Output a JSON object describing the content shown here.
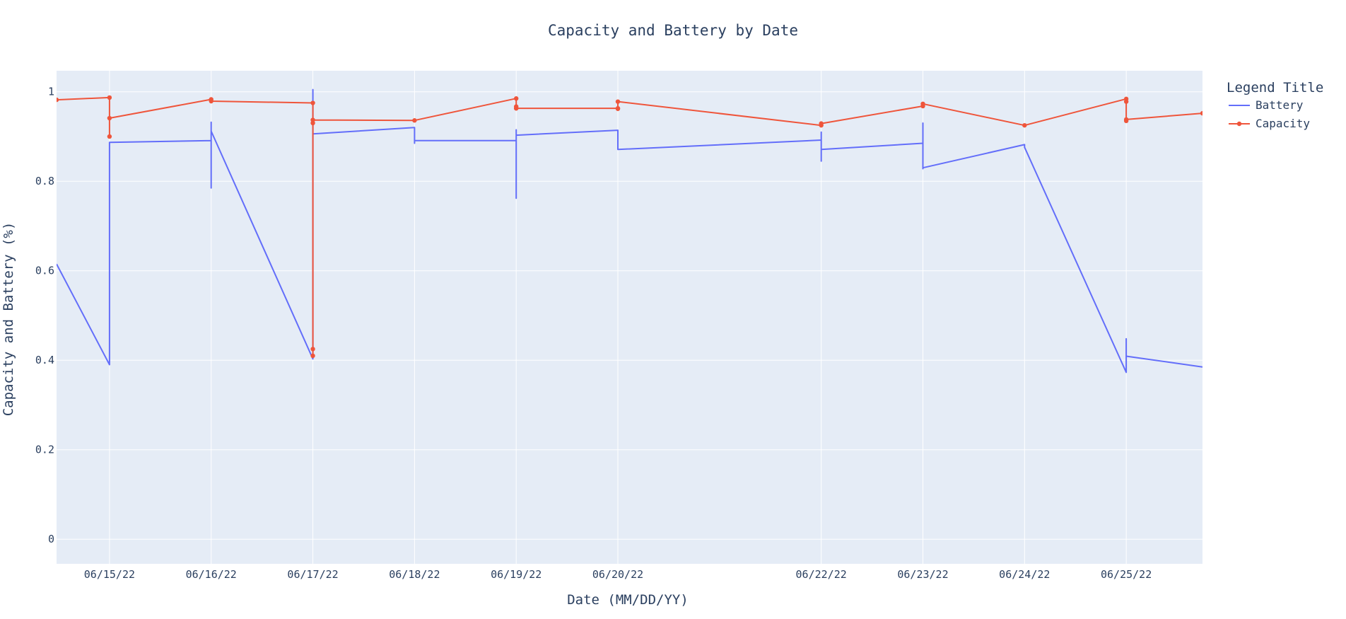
{
  "chart_data": {
    "type": "line",
    "title": "Capacity and Battery by Date",
    "xlabel": "Date (MM/DD/YY)",
    "ylabel": "Capacity and Battery (%)",
    "ylim": [
      -0.055,
      1.047
    ],
    "xlim": [
      "06/14/22 11:30",
      "06/25/22 18:00"
    ],
    "yticks": [
      0,
      0.2,
      0.4,
      0.6,
      0.8,
      1
    ],
    "ytick_labels": [
      "0",
      "0.2",
      "0.4",
      "0.6",
      "0.8",
      "1"
    ],
    "xticks": [
      "06/15/22",
      "06/16/22",
      "06/17/22",
      "06/18/22",
      "06/19/22",
      "06/20/22",
      "06/22/22",
      "06/23/22",
      "06/24/22",
      "06/25/22"
    ],
    "grid": true,
    "legend": {
      "title": "Legend Title",
      "position": "top-right"
    },
    "colors": {
      "plot_bg": "#E5ECF6",
      "grid": "#ffffff",
      "battery": "#636EFA",
      "capacity": "#EF553B"
    },
    "series": [
      {
        "name": "Battery",
        "mode": "lines",
        "points": [
          [
            "06/14/22 11:30",
            0.615
          ],
          [
            "06/15/22 00:00",
            0.39
          ],
          [
            "06/15/22 00:00",
            0.887
          ],
          [
            "06/16/22 00:00",
            0.891
          ],
          [
            "06/16/22 00:00",
            0.785
          ],
          [
            "06/16/22 00:00",
            0.932
          ],
          [
            "06/16/22 00:00",
            0.912
          ],
          [
            "06/17/22 00:00",
            0.403
          ],
          [
            "06/17/22 00:00",
            1.005
          ],
          [
            "06/17/22 00:00",
            0.906
          ],
          [
            "06/18/22 00:00",
            0.92
          ],
          [
            "06/18/22 00:00",
            0.885
          ],
          [
            "06/18/22 00:00",
            0.891
          ],
          [
            "06/19/22 00:00",
            0.891
          ],
          [
            "06/19/22 00:00",
            0.762
          ],
          [
            "06/19/22 00:00",
            0.915
          ],
          [
            "06/19/22 00:00",
            0.903
          ],
          [
            "06/20/22 00:00",
            0.914
          ],
          [
            "06/20/22 00:00",
            0.871
          ],
          [
            "06/22/22 00:00",
            0.892
          ],
          [
            "06/22/22 00:00",
            0.845
          ],
          [
            "06/22/22 00:00",
            0.91
          ],
          [
            "06/22/22 00:00",
            0.871
          ],
          [
            "06/23/22 00:00",
            0.885
          ],
          [
            "06/23/22 00:00",
            0.828
          ],
          [
            "06/23/22 00:00",
            0.93
          ],
          [
            "06/23/22 00:00",
            0.83
          ],
          [
            "06/24/22 00:00",
            0.882
          ],
          [
            "06/24/22 00:00",
            0.876
          ],
          [
            "06/25/22 00:00",
            0.373
          ],
          [
            "06/25/22 00:00",
            0.448
          ],
          [
            "06/25/22 00:00",
            0.409
          ],
          [
            "06/25/22 18:00",
            0.385
          ]
        ]
      },
      {
        "name": "Capacity",
        "mode": "lines+markers",
        "points": [
          [
            "06/14/22 11:30",
            0.982
          ],
          [
            "06/15/22 00:00",
            0.987
          ],
          [
            "06/15/22 00:00",
            0.9
          ],
          [
            "06/15/22 00:00",
            0.941
          ],
          [
            "06/16/22 00:00",
            0.983
          ],
          [
            "06/16/22 00:00",
            0.979
          ],
          [
            "06/17/22 00:00",
            0.975
          ],
          [
            "06/17/22 00:00",
            0.41
          ],
          [
            "06/17/22 00:00",
            0.425
          ],
          [
            "06/17/22 00:00",
            0.93
          ],
          [
            "06/17/22 00:00",
            0.937
          ],
          [
            "06/18/22 00:00",
            0.936
          ],
          [
            "06/19/22 00:00",
            0.985
          ],
          [
            "06/19/22 00:00",
            0.963
          ],
          [
            "06/19/22 00:00",
            0.967
          ],
          [
            "06/19/22 00:00",
            0.963
          ],
          [
            "06/20/22 00:00",
            0.963
          ],
          [
            "06/20/22 00:00",
            0.962
          ],
          [
            "06/20/22 00:00",
            0.978
          ],
          [
            "06/22/22 00:00",
            0.925
          ],
          [
            "06/22/22 00:00",
            0.929
          ],
          [
            "06/23/22 00:00",
            0.968
          ],
          [
            "06/23/22 00:00",
            0.973
          ],
          [
            "06/24/22 00:00",
            0.925
          ],
          [
            "06/25/22 00:00",
            0.984
          ],
          [
            "06/25/22 00:00",
            0.978
          ],
          [
            "06/25/22 00:00",
            0.935
          ],
          [
            "06/25/22 00:00",
            0.938
          ],
          [
            "06/25/22 18:00",
            0.952
          ]
        ]
      }
    ]
  }
}
